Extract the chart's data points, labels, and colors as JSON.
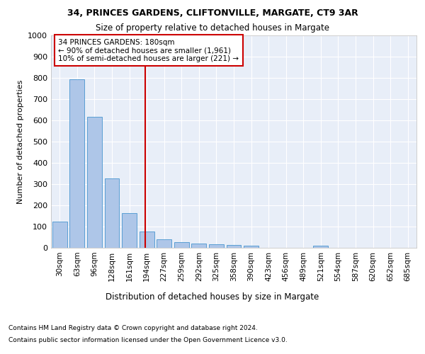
{
  "title1": "34, PRINCES GARDENS, CLIFTONVILLE, MARGATE, CT9 3AR",
  "title2": "Size of property relative to detached houses in Margate",
  "xlabel": "Distribution of detached houses by size in Margate",
  "ylabel": "Number of detached properties",
  "bar_labels": [
    "30sqm",
    "63sqm",
    "96sqm",
    "128sqm",
    "161sqm",
    "194sqm",
    "227sqm",
    "259sqm",
    "292sqm",
    "325sqm",
    "358sqm",
    "390sqm",
    "423sqm",
    "456sqm",
    "489sqm",
    "521sqm",
    "554sqm",
    "587sqm",
    "620sqm",
    "652sqm",
    "685sqm"
  ],
  "bar_values": [
    125,
    793,
    617,
    328,
    163,
    78,
    41,
    27,
    20,
    17,
    15,
    9,
    0,
    0,
    0,
    10,
    0,
    0,
    0,
    0,
    0
  ],
  "bar_color": "#aec6e8",
  "bar_edge_color": "#5a9fd4",
  "vline_color": "#cc0000",
  "vline_x_index": 4.925,
  "ylim": [
    0,
    1000
  ],
  "yticks": [
    0,
    100,
    200,
    300,
    400,
    500,
    600,
    700,
    800,
    900,
    1000
  ],
  "annotation_text": "34 PRINCES GARDENS: 180sqm\n← 90% of detached houses are smaller (1,961)\n10% of semi-detached houses are larger (221) →",
  "annotation_box_color": "#ffffff",
  "annotation_box_edge": "#cc0000",
  "footnote1": "Contains HM Land Registry data © Crown copyright and database right 2024.",
  "footnote2": "Contains public sector information licensed under the Open Government Licence v3.0.",
  "bg_color": "#e8eef8",
  "fig_bg_color": "#ffffff",
  "grid_color": "#ffffff"
}
